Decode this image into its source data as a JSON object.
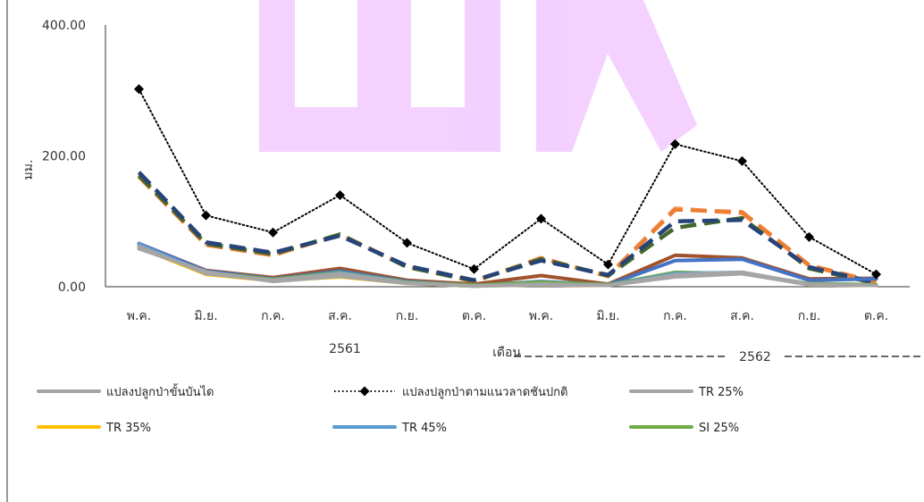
{
  "chart_data": {
    "type": "line",
    "categories": [
      "พ.ค.",
      "มิ.ย.",
      "ก.ค.",
      "ส.ค.",
      "ก.ย.",
      "ต.ค.",
      "พ.ค.",
      "มิ.ย.",
      "ก.ค.",
      "ส.ค.",
      "ก.ย.",
      "ต.ค."
    ],
    "year_groups": [
      "2561",
      "2562"
    ],
    "xlabel": "เดือน",
    "ylabel": "มม.",
    "y_ticks": [
      "0.00",
      "200.00",
      "400.00"
    ],
    "ylim": [
      0,
      400
    ],
    "grid": false,
    "legend_position": "bottom",
    "series": [
      {
        "name": "แปลงปลูกป่าขั้นบันได",
        "color": "#a5a5a5",
        "style": "solid",
        "values": [
          58,
          23,
          8,
          16,
          5,
          1,
          3,
          2,
          15,
          20,
          3,
          2
        ]
      },
      {
        "name": "แปลงปลูกป่าตามแนวลาดชันปกติ",
        "color": "#000000",
        "style": "dotted-diamond",
        "values": [
          302,
          109,
          83,
          140,
          67,
          27,
          104,
          34,
          218,
          192,
          76,
          19
        ]
      },
      {
        "name": "TR 25%",
        "color": "#a5a5a5",
        "style": "solid",
        "values": [
          62,
          20,
          10,
          20,
          6,
          1,
          4,
          2,
          18,
          22,
          4,
          2
        ]
      },
      {
        "name": "TR 35%",
        "color": "#ffc000",
        "style": "solid",
        "values": [
          60,
          19,
          9,
          15,
          5,
          1,
          3,
          2,
          16,
          21,
          3,
          2
        ]
      },
      {
        "name": "TR 45%",
        "color": "#5b9bd5",
        "style": "solid",
        "values": [
          65,
          21,
          9,
          21,
          6,
          1,
          4,
          2,
          20,
          22,
          4,
          2
        ]
      },
      {
        "name": "SI 25%",
        "color": "#70ad47",
        "style": "solid",
        "values": [
          63,
          22,
          11,
          22,
          7,
          2,
          7,
          3,
          22,
          20,
          5,
          3
        ]
      },
      {
        "name": "",
        "color": "#4472c4",
        "style": "solid",
        "values": [
          66,
          24,
          12,
          24,
          8,
          2,
          8,
          3,
          40,
          42,
          10,
          12
        ]
      },
      {
        "name": "",
        "color": "#264478",
        "style": "dashed",
        "values": [
          175,
          68,
          52,
          78,
          32,
          10,
          40,
          18,
          100,
          102,
          30,
          6
        ]
      },
      {
        "name": "",
        "color": "#43682b",
        "style": "dashed",
        "values": [
          170,
          66,
          50,
          80,
          30,
          9,
          42,
          17,
          90,
          105,
          28,
          5
        ]
      },
      {
        "name": "",
        "color": "#ed7d31",
        "style": "dashed",
        "values": [
          168,
          64,
          48,
          80,
          31,
          8,
          44,
          16,
          118,
          114,
          33,
          7
        ]
      },
      {
        "name": "",
        "color": "#f4b183",
        "style": "dashed",
        "values": [
          172,
          65,
          49,
          79,
          31,
          9,
          43,
          17,
          120,
          112,
          32,
          6
        ]
      },
      {
        "name": "",
        "color": "#a0522d",
        "style": "solid",
        "values": [
          66,
          25,
          14,
          28,
          10,
          4,
          17,
          4,
          48,
          44,
          12,
          13
        ]
      }
    ]
  }
}
